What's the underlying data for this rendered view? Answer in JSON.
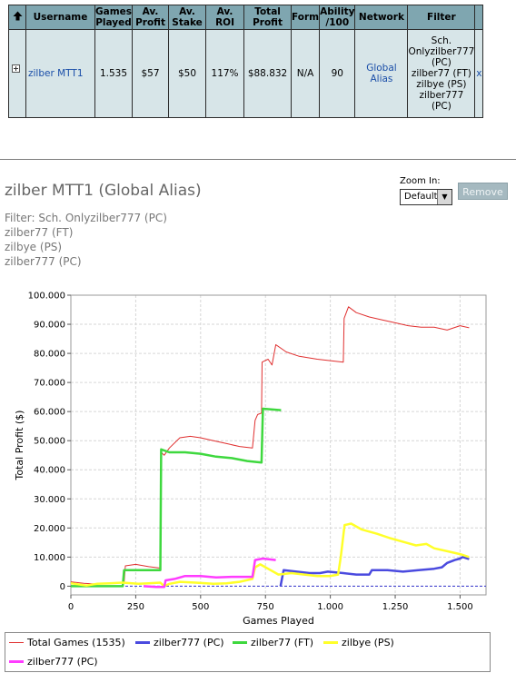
{
  "table": {
    "headers": {
      "username": "Username",
      "games_played_1": "Games",
      "games_played_2": "Played",
      "av_profit_1": "Av.",
      "av_profit_2": "Profit",
      "av_stake_1": "Av.",
      "av_stake_2": "Stake",
      "av_roi": "Av. ROI",
      "total_profit_1": "Total",
      "total_profit_2": "Profit",
      "form": "Form",
      "ability_1": "Ability",
      "ability_2": "/100",
      "network": "Network",
      "filter": "Filter"
    },
    "row": {
      "username": "zilber MTT1",
      "games_played": "1.535",
      "av_profit": "$57",
      "av_stake": "$50",
      "av_roi": "117%",
      "total_profit": "$88.832",
      "form": "N/A",
      "ability": "90",
      "network": "Global Alias",
      "filter_lines": [
        "Sch.",
        "Onlyzilber777",
        "(PC)",
        "zilber77 (FT)",
        "zilbye (PS)",
        "zilber777",
        "(PC)"
      ],
      "remove": "x"
    }
  },
  "chart_header": {
    "title": "zilber MTT1 (Global Alias)",
    "filter_lines": [
      "Filter: Sch. Onlyzilber777 (PC)",
      "zilber77 (FT)",
      "zilbye (PS)",
      "zilber777 (PC)"
    ],
    "zoom_label": "Zoom In:",
    "zoom_value": "Default",
    "remove_label": "Remove"
  },
  "chart_data": {
    "type": "line",
    "xlabel": "Games Played",
    "ylabel": "Total Profit ($)",
    "xlim": [
      0,
      1600
    ],
    "ylim": [
      -3000,
      100000
    ],
    "xticks": [
      0,
      250,
      500,
      750,
      1000,
      1250,
      1500
    ],
    "xtick_labels": [
      "0",
      "250",
      "500",
      "750",
      "1.000",
      "1.250",
      "1.500"
    ],
    "yticks": [
      0,
      10000,
      20000,
      30000,
      40000,
      50000,
      60000,
      70000,
      80000,
      90000,
      100000
    ],
    "ytick_labels": [
      "0",
      "10.000",
      "20.000",
      "30.000",
      "40.000",
      "50.000",
      "60.000",
      "70.000",
      "80.000",
      "90.000",
      "100.000"
    ],
    "grid": true,
    "legend_position": "bottom",
    "series": [
      {
        "name": "Total Games (1535)",
        "color": "#e03030",
        "width": 1,
        "points": [
          [
            0,
            1500
          ],
          [
            50,
            1000
          ],
          [
            100,
            700
          ],
          [
            150,
            1000
          ],
          [
            205,
            1200
          ],
          [
            210,
            7000
          ],
          [
            250,
            7500
          ],
          [
            300,
            6700
          ],
          [
            345,
            6200
          ],
          [
            348,
            46000
          ],
          [
            360,
            45000
          ],
          [
            380,
            47500
          ],
          [
            420,
            51000
          ],
          [
            460,
            51500
          ],
          [
            500,
            51000
          ],
          [
            550,
            50000
          ],
          [
            600,
            49000
          ],
          [
            650,
            48000
          ],
          [
            700,
            47500
          ],
          [
            710,
            57000
          ],
          [
            720,
            59000
          ],
          [
            735,
            59500
          ],
          [
            737,
            77000
          ],
          [
            760,
            78000
          ],
          [
            775,
            76000
          ],
          [
            790,
            83000
          ],
          [
            830,
            80500
          ],
          [
            880,
            79000
          ],
          [
            950,
            78000
          ],
          [
            1000,
            77500
          ],
          [
            1050,
            77000
          ],
          [
            1053,
            92000
          ],
          [
            1070,
            96000
          ],
          [
            1100,
            94000
          ],
          [
            1150,
            92500
          ],
          [
            1200,
            91500
          ],
          [
            1250,
            90500
          ],
          [
            1300,
            89500
          ],
          [
            1350,
            89000
          ],
          [
            1400,
            89000
          ],
          [
            1450,
            88000
          ],
          [
            1500,
            89500
          ],
          [
            1535,
            88800
          ]
        ]
      },
      {
        "name": "zilber777 (PC)",
        "color": "#4a4adf",
        "width": 2.5,
        "points": [
          [
            808,
            0
          ],
          [
            820,
            5500
          ],
          [
            870,
            5000
          ],
          [
            920,
            4500
          ],
          [
            960,
            4500
          ],
          [
            990,
            5000
          ],
          [
            1050,
            4500
          ],
          [
            1100,
            4000
          ],
          [
            1150,
            4000
          ],
          [
            1160,
            5500
          ],
          [
            1220,
            5500
          ],
          [
            1280,
            5000
          ],
          [
            1340,
            5500
          ],
          [
            1400,
            6000
          ],
          [
            1430,
            6500
          ],
          [
            1450,
            8000
          ],
          [
            1480,
            9000
          ],
          [
            1500,
            9500
          ],
          [
            1510,
            10000
          ],
          [
            1535,
            9300
          ]
        ]
      },
      {
        "name": "zilber77 (FT)",
        "color": "#3ed83e",
        "width": 2.5,
        "points": [
          [
            0,
            0
          ],
          [
            100,
            0
          ],
          [
            200,
            0
          ],
          [
            205,
            5500
          ],
          [
            260,
            5500
          ],
          [
            345,
            5500
          ],
          [
            348,
            47000
          ],
          [
            380,
            46000
          ],
          [
            440,
            46000
          ],
          [
            500,
            45500
          ],
          [
            560,
            44500
          ],
          [
            620,
            44000
          ],
          [
            680,
            43000
          ],
          [
            735,
            42500
          ],
          [
            740,
            61000
          ],
          [
            810,
            60500
          ]
        ]
      },
      {
        "name": "zilbye (PS)",
        "color": "#ffff2a",
        "width": 2.5,
        "points": [
          [
            0,
            1000
          ],
          [
            60,
            200
          ],
          [
            100,
            800
          ],
          [
            150,
            1000
          ],
          [
            200,
            1200
          ],
          [
            260,
            800
          ],
          [
            300,
            1000
          ],
          [
            345,
            1200
          ],
          [
            360,
            0
          ],
          [
            380,
            800
          ],
          [
            420,
            1500
          ],
          [
            480,
            1200
          ],
          [
            550,
            800
          ],
          [
            600,
            1000
          ],
          [
            650,
            1500
          ],
          [
            700,
            2500
          ],
          [
            710,
            6500
          ],
          [
            730,
            7500
          ],
          [
            740,
            7000
          ],
          [
            760,
            6000
          ],
          [
            780,
            5000
          ],
          [
            800,
            4000
          ],
          [
            850,
            4500
          ],
          [
            900,
            4000
          ],
          [
            950,
            3500
          ],
          [
            1000,
            3500
          ],
          [
            1030,
            4000
          ],
          [
            1040,
            10000
          ],
          [
            1055,
            21000
          ],
          [
            1080,
            21500
          ],
          [
            1120,
            19500
          ],
          [
            1180,
            18000
          ],
          [
            1230,
            16500
          ],
          [
            1290,
            15000
          ],
          [
            1330,
            14000
          ],
          [
            1370,
            14500
          ],
          [
            1400,
            13000
          ],
          [
            1450,
            12000
          ],
          [
            1500,
            11000
          ],
          [
            1535,
            10000
          ]
        ]
      },
      {
        "name": "zilber777 (PC)",
        "color": "#ff3cff",
        "width": 2.5,
        "points": [
          [
            280,
            0
          ],
          [
            330,
            -300
          ],
          [
            360,
            -300
          ],
          [
            365,
            2000
          ],
          [
            400,
            2500
          ],
          [
            440,
            3500
          ],
          [
            500,
            3500
          ],
          [
            560,
            3000
          ],
          [
            620,
            3200
          ],
          [
            700,
            3200
          ],
          [
            710,
            9000
          ],
          [
            740,
            9500
          ],
          [
            790,
            9000
          ]
        ]
      }
    ]
  }
}
